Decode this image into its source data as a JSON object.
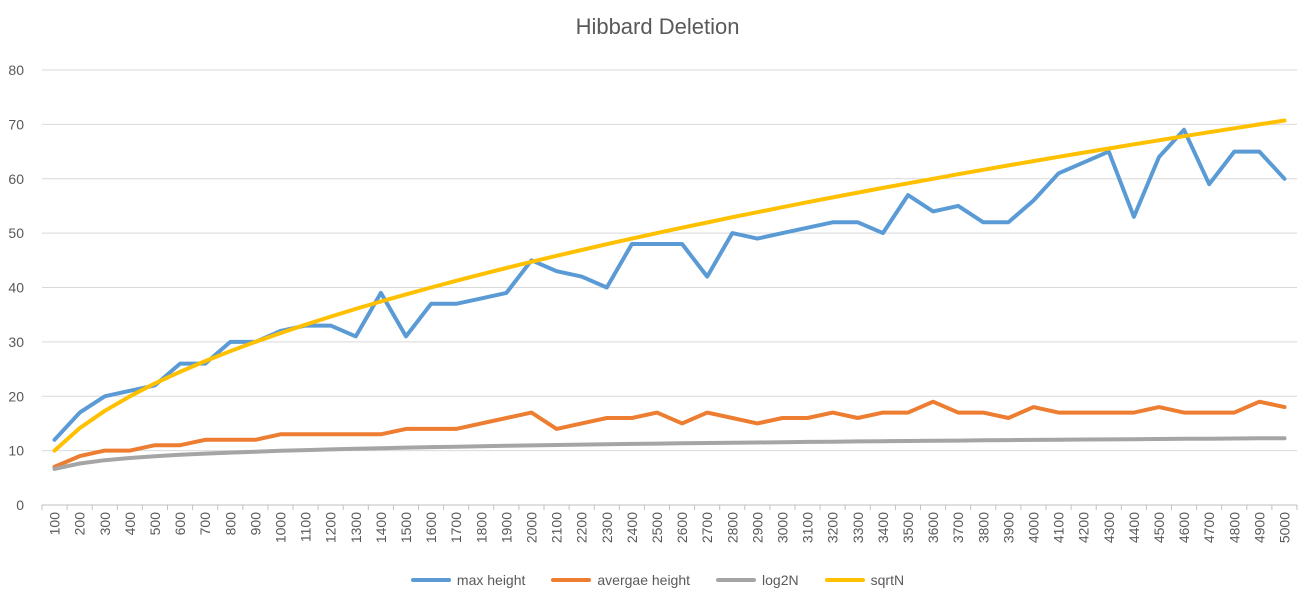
{
  "chart_data": {
    "type": "line",
    "title": "Hibbard Deletion",
    "xlabel": "",
    "ylabel": "",
    "ylim": [
      0,
      80
    ],
    "yticks": [
      0,
      10,
      20,
      30,
      40,
      50,
      60,
      70,
      80
    ],
    "grid": true,
    "legend_position": "bottom",
    "categories": [
      "100",
      "200",
      "300",
      "400",
      "500",
      "600",
      "700",
      "800",
      "900",
      "1000",
      "1100",
      "1200",
      "1300",
      "1400",
      "1500",
      "1600",
      "1700",
      "1800",
      "1900",
      "2000",
      "2100",
      "2200",
      "2300",
      "2400",
      "2500",
      "2600",
      "2700",
      "2800",
      "2900",
      "3000",
      "3100",
      "3200",
      "3300",
      "3400",
      "3500",
      "3600",
      "3700",
      "3800",
      "3900",
      "4000",
      "4100",
      "4200",
      "4300",
      "4400",
      "4500",
      "4600",
      "4700",
      "4800",
      "4900",
      "5000"
    ],
    "series": [
      {
        "name": "max height",
        "color": "#5B9BD5",
        "values": [
          12,
          17,
          20,
          21,
          22,
          26,
          26,
          30,
          30,
          32,
          33,
          33,
          31,
          39,
          31,
          37,
          37,
          38,
          39,
          45,
          43,
          42,
          40,
          48,
          48,
          48,
          42,
          50,
          49,
          50,
          51,
          52,
          52,
          50,
          57,
          54,
          55,
          52,
          52,
          56,
          61,
          63,
          65,
          53,
          64,
          69,
          59,
          65,
          65,
          60
        ]
      },
      {
        "name": "avergae height",
        "color": "#ED7D31",
        "values": [
          7,
          9,
          10,
          10,
          11,
          11,
          12,
          12,
          12,
          13,
          13,
          13,
          13,
          13,
          14,
          14,
          14,
          15,
          16,
          17,
          14,
          15,
          16,
          16,
          17,
          15,
          17,
          16,
          15,
          16,
          16,
          17,
          16,
          17,
          17,
          19,
          17,
          17,
          16,
          18,
          17,
          17,
          17,
          17,
          18,
          17,
          17,
          17,
          19,
          18
        ]
      },
      {
        "name": "log2N",
        "color": "#A5A5A5",
        "values": [
          6.64,
          7.64,
          8.23,
          8.64,
          8.97,
          9.23,
          9.45,
          9.64,
          9.81,
          9.97,
          10.1,
          10.23,
          10.34,
          10.45,
          10.55,
          10.64,
          10.73,
          10.81,
          10.89,
          10.97,
          11.04,
          11.1,
          11.17,
          11.23,
          11.29,
          11.34,
          11.4,
          11.45,
          11.5,
          11.55,
          11.6,
          11.64,
          11.69,
          11.73,
          11.77,
          11.81,
          11.85,
          11.89,
          11.93,
          11.97,
          12,
          12.04,
          12.07,
          12.1,
          12.14,
          12.17,
          12.2,
          12.23,
          12.26,
          12.29
        ]
      },
      {
        "name": "sqrtN",
        "color": "#FFC000",
        "values": [
          10,
          14.14,
          17.32,
          20,
          22.36,
          24.49,
          26.46,
          28.28,
          30,
          31.62,
          33.17,
          34.64,
          36.06,
          37.42,
          38.73,
          40,
          41.23,
          42.43,
          43.59,
          44.72,
          45.83,
          46.9,
          47.96,
          48.99,
          50,
          50.99,
          51.96,
          52.92,
          53.85,
          54.77,
          55.68,
          56.57,
          57.45,
          58.31,
          59.16,
          60,
          60.83,
          61.64,
          62.45,
          63.25,
          64.03,
          64.81,
          65.57,
          66.33,
          67.08,
          67.82,
          68.56,
          69.28,
          70,
          70.71
        ]
      }
    ]
  }
}
